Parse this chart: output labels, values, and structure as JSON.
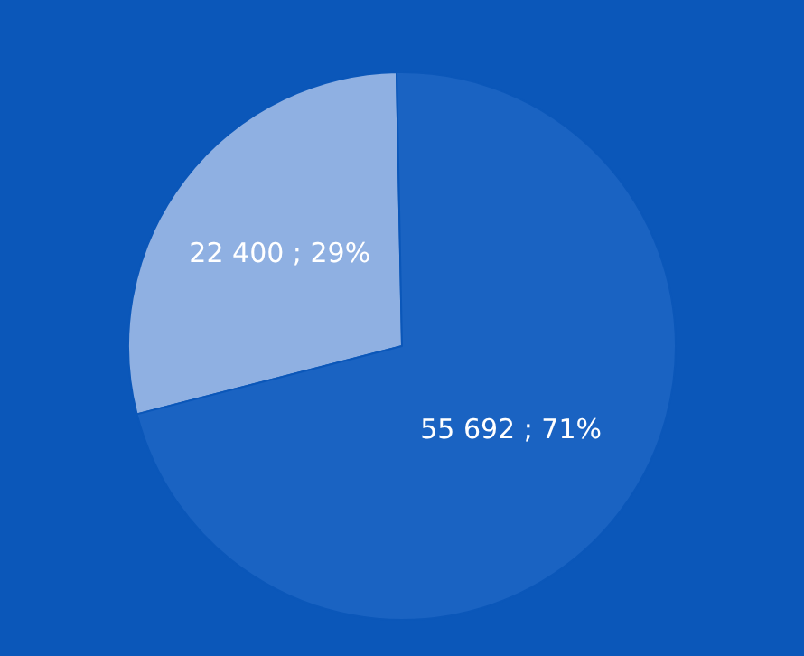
{
  "chart_data": {
    "type": "pie",
    "categories": [
      null,
      null
    ],
    "values": [
      22400,
      55692
    ],
    "value_labels": [
      "22 400 ; 29%",
      "55 692 ; 71%"
    ],
    "colors": [
      "#8fb0e2",
      "#1a63c2"
    ],
    "legend": false
  }
}
